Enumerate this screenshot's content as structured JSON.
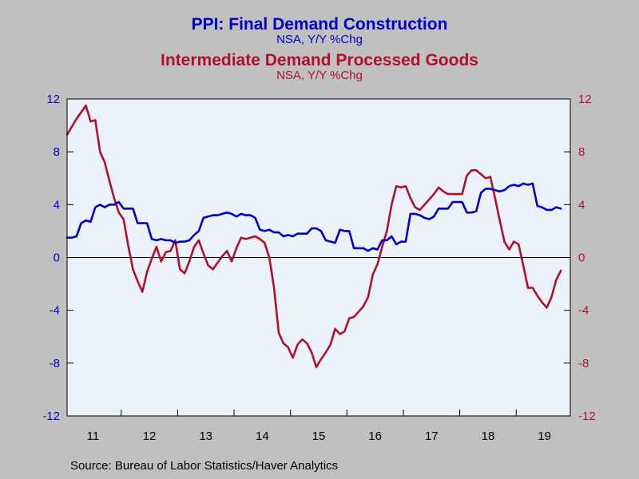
{
  "header": {
    "title1": "PPI: Final Demand Construction",
    "subtitle1": "NSA, Y/Y %Chg",
    "title2": "Intermediate Demand Processed Goods",
    "subtitle2": "NSA, Y/Y %Chg"
  },
  "footer": {
    "source": "Source:  Bureau of Labor Statistics/Haver Analytics"
  },
  "colors": {
    "series1": "#0000c8",
    "series2": "#b0102e",
    "plot_bg": "#ebf2fa",
    "page_bg": "#c0c0c0"
  },
  "chart_data": {
    "type": "line",
    "grid": false,
    "legend": "none",
    "x_start": "2011-01",
    "x_frequency": "monthly",
    "xlim": [
      "2011-01",
      "2019-12"
    ],
    "x_ticks": [
      "11",
      "12",
      "13",
      "14",
      "15",
      "16",
      "17",
      "18",
      "19"
    ],
    "ylim": [
      -12,
      12
    ],
    "y_ticks_left": [
      "12",
      "8",
      "4",
      "0",
      "-4",
      "-8",
      "-12"
    ],
    "y_ticks_right": [
      "12",
      "8",
      "4",
      "0",
      "-4",
      "-8",
      "-12"
    ],
    "zero_line": true,
    "series": [
      {
        "name": "PPI: Final Demand Construction",
        "axis": "left",
        "values": [
          1.5,
          1.5,
          1.6,
          2.6,
          2.8,
          2.7,
          3.8,
          4.0,
          3.8,
          4.0,
          4.0,
          4.2,
          3.7,
          3.7,
          3.7,
          2.6,
          2.6,
          2.6,
          1.4,
          1.3,
          1.4,
          1.3,
          1.3,
          1.1,
          1.2,
          1.2,
          1.3,
          1.7,
          2.0,
          3.0,
          3.1,
          3.2,
          3.2,
          3.3,
          3.4,
          3.3,
          3.1,
          3.3,
          3.2,
          3.2,
          3.0,
          2.1,
          2.0,
          2.1,
          1.9,
          1.9,
          1.6,
          1.7,
          1.6,
          1.8,
          1.8,
          1.8,
          2.2,
          2.2,
          2.0,
          1.3,
          1.2,
          1.1,
          2.1,
          2.0,
          2.0,
          0.7,
          0.7,
          0.7,
          0.5,
          0.7,
          0.6,
          1.3,
          1.3,
          1.6,
          1.0,
          1.2,
          1.2,
          3.3,
          3.3,
          3.2,
          3.0,
          2.9,
          3.1,
          3.7,
          3.7,
          3.7,
          4.2,
          4.2,
          4.2,
          3.4,
          3.4,
          3.5,
          4.9,
          5.2,
          5.2,
          5.1,
          5.0,
          5.1,
          5.4,
          5.5,
          5.4,
          5.6,
          5.5,
          5.6,
          3.9,
          3.8,
          3.6,
          3.6,
          3.8,
          3.7
        ]
      },
      {
        "name": "Intermediate Demand Processed Goods",
        "axis": "right",
        "values": [
          9.3,
          9.9,
          10.5,
          11.0,
          11.5,
          10.3,
          10.4,
          8.0,
          7.2,
          5.8,
          4.5,
          3.4,
          2.9,
          0.9,
          -0.9,
          -1.8,
          -2.6,
          -1.1,
          -0.1,
          0.8,
          -0.3,
          0.4,
          0.5,
          1.3,
          -0.9,
          -1.2,
          -0.3,
          0.8,
          1.3,
          0.3,
          -0.6,
          -0.9,
          -0.4,
          0.1,
          0.5,
          -0.3,
          0.7,
          1.5,
          1.4,
          1.5,
          1.6,
          1.4,
          1.1,
          0.0,
          -2.3,
          -5.7,
          -6.5,
          -6.8,
          -7.6,
          -6.6,
          -6.2,
          -6.5,
          -7.2,
          -8.3,
          -7.7,
          -7.2,
          -6.6,
          -5.4,
          -5.8,
          -5.6,
          -4.6,
          -4.5,
          -4.1,
          -3.7,
          -3.0,
          -1.3,
          -0.5,
          0.8,
          2.0,
          4.0,
          5.4,
          5.3,
          5.4,
          4.5,
          3.8,
          3.6,
          4.0,
          4.4,
          4.8,
          5.3,
          5.0,
          4.8,
          4.8,
          4.8,
          4.8,
          6.2,
          6.6,
          6.6,
          6.3,
          6.0,
          6.1,
          4.5,
          2.8,
          1.2,
          0.6,
          1.2,
          1.0,
          -0.6,
          -2.3,
          -2.3,
          -2.9,
          -3.4,
          -3.8,
          -3.0,
          -1.7,
          -1.0
        ]
      }
    ]
  }
}
